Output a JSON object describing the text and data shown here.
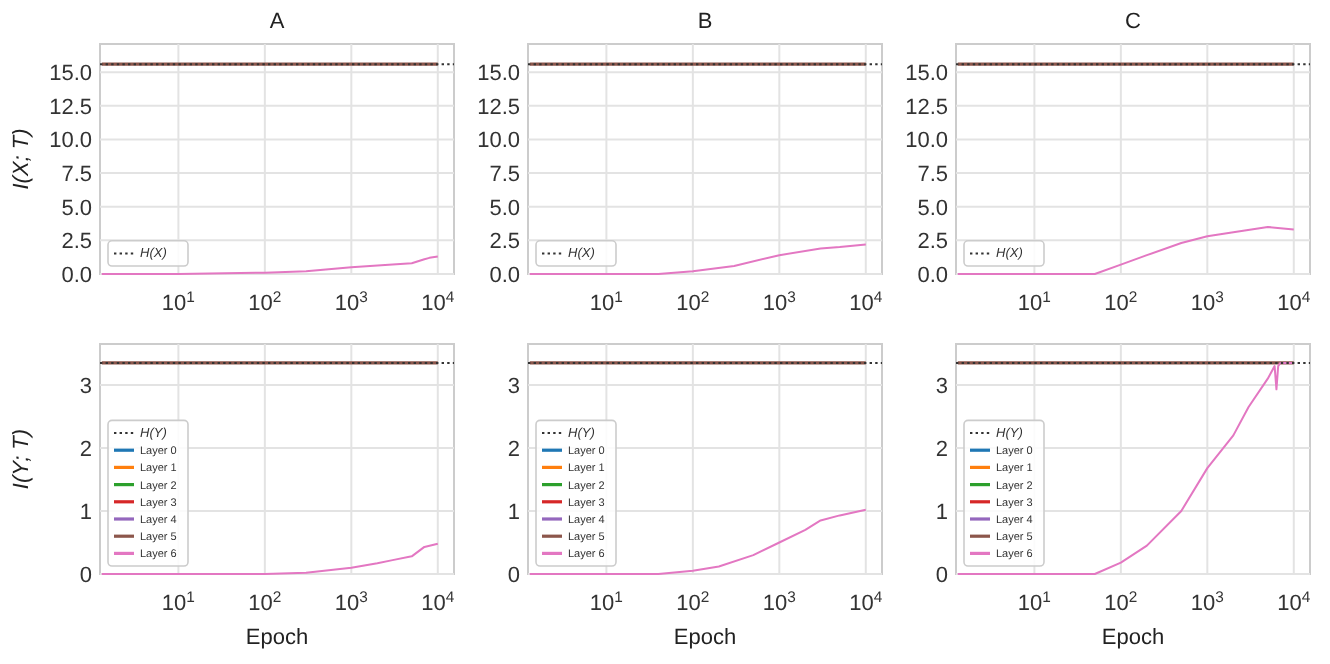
{
  "chart_data": [
    {
      "type": "line",
      "title": "A",
      "ylabel": "I(X; T)",
      "xlim": [
        1.24,
        15400
      ],
      "ylim": [
        0,
        17.1
      ],
      "log": "x",
      "grid": true,
      "legend": "bottom left",
      "xticks": [
        {
          "value": 10,
          "label": "10$^{1}$"
        },
        {
          "value": 100,
          "label": "10$^{2}$"
        },
        {
          "value": 1000,
          "label": "10$^{3}$"
        },
        {
          "value": 10000,
          "label": "10$^{4}$"
        }
      ],
      "yticks": [
        {
          "value": 0,
          "label": "0.0"
        },
        2.5,
        {
          "value": 5,
          "label": "5.0"
        },
        7.5,
        {
          "value": 10,
          "label": "10.0"
        },
        12.5,
        {
          "value": 15,
          "label": "15.0"
        }
      ],
      "ref_lines": [
        {
          "axis": "y",
          "value": 15.6,
          "label": "H(X)",
          "line_style": "dotted",
          "color": "#333333"
        }
      ],
      "series": [
        {
          "color": "#1f77b4",
          "values": [
            null,
            null
          ]
        },
        {
          "color": "#ff7f0e",
          "values": [
            null,
            null
          ]
        },
        {
          "color": "#2ca02c",
          "values": [
            null,
            null
          ]
        },
        {
          "color": "#d62728",
          "values": [
            null,
            null
          ]
        },
        {
          "color": "#9467bd",
          "values": [
            null,
            null
          ]
        },
        {
          "color": "#8c564b",
          "x": [
            1.3,
            10000
          ],
          "values": [
            15.6,
            15.6
          ]
        },
        {
          "color": "#e377c2",
          "x": [
            1.3,
            10,
            100,
            300,
            1000,
            3000,
            5000,
            7000,
            8000,
            10000
          ],
          "values": [
            0,
            0,
            0.1,
            0.2,
            0.5,
            0.7,
            0.8,
            1.1,
            1.2,
            1.3
          ]
        }
      ]
    },
    {
      "type": "line",
      "title": "B",
      "xlim": [
        1.24,
        15400
      ],
      "ylim": [
        0,
        17.1
      ],
      "log": "x",
      "grid": true,
      "legend": "bottom left",
      "xticks": [
        {
          "value": 10,
          "label": "10$^{1}$"
        },
        {
          "value": 100,
          "label": "10$^{2}$"
        },
        {
          "value": 1000,
          "label": "10$^{3}$"
        },
        {
          "value": 10000,
          "label": "10$^{4}$"
        }
      ],
      "yticks": [
        {
          "value": 0,
          "label": "0.0"
        },
        2.5,
        {
          "value": 5,
          "label": "5.0"
        },
        7.5,
        {
          "value": 10,
          "label": "10.0"
        },
        12.5,
        {
          "value": 15,
          "label": "15.0"
        }
      ],
      "ref_lines": [
        {
          "axis": "y",
          "value": 15.6,
          "label": "H(X)",
          "line_style": "dotted",
          "color": "#333333"
        }
      ],
      "series": [
        {
          "color": "#1f77b4",
          "values": [
            null,
            null
          ]
        },
        {
          "color": "#ff7f0e",
          "values": [
            null,
            null
          ]
        },
        {
          "color": "#2ca02c",
          "values": [
            null,
            null
          ]
        },
        {
          "color": "#d62728",
          "values": [
            null,
            null
          ]
        },
        {
          "color": "#9467bd",
          "values": [
            null,
            null
          ]
        },
        {
          "color": "#8c564b",
          "x": [
            1.3,
            10000
          ],
          "values": [
            15.6,
            15.6
          ]
        },
        {
          "color": "#e377c2",
          "x": [
            1.3,
            10,
            40,
            100,
            300,
            1000,
            3000,
            5000,
            10000
          ],
          "values": [
            0,
            0,
            0,
            0.2,
            0.6,
            1.4,
            1.9,
            2.0,
            2.2
          ]
        }
      ]
    },
    {
      "type": "line",
      "title": "C",
      "xlim": [
        1.24,
        15400
      ],
      "ylim": [
        0,
        17.1
      ],
      "log": "x",
      "grid": true,
      "legend": "bottom left",
      "xticks": [
        {
          "value": 10,
          "label": "10$^{1}$"
        },
        {
          "value": 100,
          "label": "10$^{2}$"
        },
        {
          "value": 1000,
          "label": "10$^{3}$"
        },
        {
          "value": 10000,
          "label": "10$^{4}$"
        }
      ],
      "yticks": [
        {
          "value": 0,
          "label": "0.0"
        },
        2.5,
        {
          "value": 5,
          "label": "5.0"
        },
        7.5,
        {
          "value": 10,
          "label": "10.0"
        },
        12.5,
        {
          "value": 15,
          "label": "15.0"
        }
      ],
      "ref_lines": [
        {
          "axis": "y",
          "value": 15.6,
          "label": "H(X)",
          "line_style": "dotted",
          "color": "#333333"
        }
      ],
      "series": [
        {
          "color": "#1f77b4",
          "values": [
            null,
            null
          ]
        },
        {
          "color": "#ff7f0e",
          "values": [
            null,
            null
          ]
        },
        {
          "color": "#2ca02c",
          "values": [
            null,
            null
          ]
        },
        {
          "color": "#d62728",
          "values": [
            null,
            null
          ]
        },
        {
          "color": "#9467bd",
          "values": [
            null,
            null
          ]
        },
        {
          "color": "#8c564b",
          "x": [
            1.3,
            10000
          ],
          "values": [
            15.6,
            15.6
          ]
        },
        {
          "color": "#e377c2",
          "x": [
            1.3,
            10,
            50,
            100,
            200,
            500,
            1000,
            2000,
            5000,
            7000,
            10000
          ],
          "values": [
            0,
            0,
            0,
            0.7,
            1.4,
            2.3,
            2.8,
            3.1,
            3.5,
            3.4,
            3.3
          ]
        }
      ]
    },
    {
      "type": "line",
      "xlabel": "Epoch",
      "ylabel": "I(Y; T)",
      "xlim": [
        1.24,
        15400
      ],
      "ylim": [
        0,
        3.65
      ],
      "log": "x",
      "grid": true,
      "legend": "bottom left",
      "xticks": [
        {
          "value": 10,
          "label": "10$^{1}$"
        },
        {
          "value": 100,
          "label": "10$^{2}$"
        },
        {
          "value": 1000,
          "label": "10$^{3}$"
        },
        {
          "value": 10000,
          "label": "10$^{4}$"
        }
      ],
      "yticks": [
        0,
        1,
        2,
        3
      ],
      "ref_lines": [
        {
          "axis": "y",
          "value": 3.35,
          "label": "H(Y)",
          "line_style": "dotted",
          "color": "#333333"
        }
      ],
      "series": [
        {
          "name": "Layer 0",
          "color": "#1f77b4",
          "values": [
            null,
            null
          ]
        },
        {
          "name": "Layer 1",
          "color": "#ff7f0e",
          "values": [
            null,
            null
          ]
        },
        {
          "name": "Layer 2",
          "color": "#2ca02c",
          "values": [
            null,
            null
          ]
        },
        {
          "name": "Layer 3",
          "color": "#d62728",
          "values": [
            null,
            null
          ]
        },
        {
          "name": "Layer 4",
          "color": "#9467bd",
          "values": [
            null,
            null
          ]
        },
        {
          "name": "Layer 5",
          "color": "#8c564b",
          "x": [
            1.3,
            10000
          ],
          "values": [
            3.35,
            3.35
          ]
        },
        {
          "name": "Layer 6",
          "color": "#e377c2",
          "x": [
            1.3,
            10,
            100,
            300,
            1000,
            2000,
            3000,
            5000,
            7000,
            10000
          ],
          "values": [
            0,
            0,
            0,
            0.02,
            0.1,
            0.17,
            0.22,
            0.28,
            0.43,
            0.48
          ]
        }
      ]
    },
    {
      "type": "line",
      "xlabel": "Epoch",
      "xlim": [
        1.24,
        15400
      ],
      "ylim": [
        0,
        3.65
      ],
      "log": "x",
      "grid": true,
      "legend": "bottom left",
      "xticks": [
        {
          "value": 10,
          "label": "10$^{1}$"
        },
        {
          "value": 100,
          "label": "10$^{2}$"
        },
        {
          "value": 1000,
          "label": "10$^{3}$"
        },
        {
          "value": 10000,
          "label": "10$^{4}$"
        }
      ],
      "yticks": [
        0,
        1,
        2,
        3
      ],
      "ref_lines": [
        {
          "axis": "y",
          "value": 3.35,
          "label": "H(Y)",
          "line_style": "dotted",
          "color": "#333333"
        }
      ],
      "series": [
        {
          "name": "Layer 0",
          "color": "#1f77b4",
          "values": [
            null,
            null
          ]
        },
        {
          "name": "Layer 1",
          "color": "#ff7f0e",
          "values": [
            null,
            null
          ]
        },
        {
          "name": "Layer 2",
          "color": "#2ca02c",
          "values": [
            null,
            null
          ]
        },
        {
          "name": "Layer 3",
          "color": "#d62728",
          "values": [
            null,
            null
          ]
        },
        {
          "name": "Layer 4",
          "color": "#9467bd",
          "values": [
            null,
            null
          ]
        },
        {
          "name": "Layer 5",
          "color": "#8c564b",
          "x": [
            1.3,
            10000
          ],
          "values": [
            3.35,
            3.35
          ]
        },
        {
          "name": "Layer 6",
          "color": "#e377c2",
          "x": [
            1.3,
            10,
            40,
            100,
            200,
            500,
            1000,
            2000,
            3000,
            5000,
            10000
          ],
          "values": [
            0,
            0,
            0,
            0.05,
            0.12,
            0.3,
            0.5,
            0.7,
            0.85,
            0.93,
            1.02
          ]
        }
      ]
    },
    {
      "type": "line",
      "xlabel": "Epoch",
      "xlim": [
        1.24,
        15400
      ],
      "ylim": [
        0,
        3.65
      ],
      "log": "x",
      "grid": true,
      "legend": "bottom left",
      "xticks": [
        {
          "value": 10,
          "label": "10$^{1}$"
        },
        {
          "value": 100,
          "label": "10$^{2}$"
        },
        {
          "value": 1000,
          "label": "10$^{3}$"
        },
        {
          "value": 10000,
          "label": "10$^{4}$"
        }
      ],
      "yticks": [
        0,
        1,
        2,
        3
      ],
      "ref_lines": [
        {
          "axis": "y",
          "value": 3.35,
          "label": "H(Y)",
          "line_style": "dotted",
          "color": "#333333"
        }
      ],
      "series": [
        {
          "name": "Layer 0",
          "color": "#1f77b4",
          "values": [
            null,
            null
          ]
        },
        {
          "name": "Layer 1",
          "color": "#ff7f0e",
          "values": [
            null,
            null
          ]
        },
        {
          "name": "Layer 2",
          "color": "#2ca02c",
          "values": [
            null,
            null
          ]
        },
        {
          "name": "Layer 3",
          "color": "#d62728",
          "values": [
            null,
            null
          ]
        },
        {
          "name": "Layer 4",
          "color": "#9467bd",
          "values": [
            null,
            null
          ]
        },
        {
          "name": "Layer 5",
          "color": "#8c564b",
          "x": [
            1.3,
            10000
          ],
          "values": [
            3.35,
            3.35
          ]
        },
        {
          "name": "Layer 6",
          "color": "#e377c2",
          "x": [
            1.3,
            10,
            50,
            100,
            200,
            500,
            1000,
            2000,
            3000,
            5000,
            6000,
            6300,
            6600,
            7000,
            10000
          ],
          "values": [
            0,
            0,
            0,
            0.18,
            0.45,
            1.0,
            1.68,
            2.2,
            2.65,
            3.1,
            3.3,
            2.93,
            3.3,
            3.35,
            3.35
          ]
        }
      ]
    }
  ]
}
